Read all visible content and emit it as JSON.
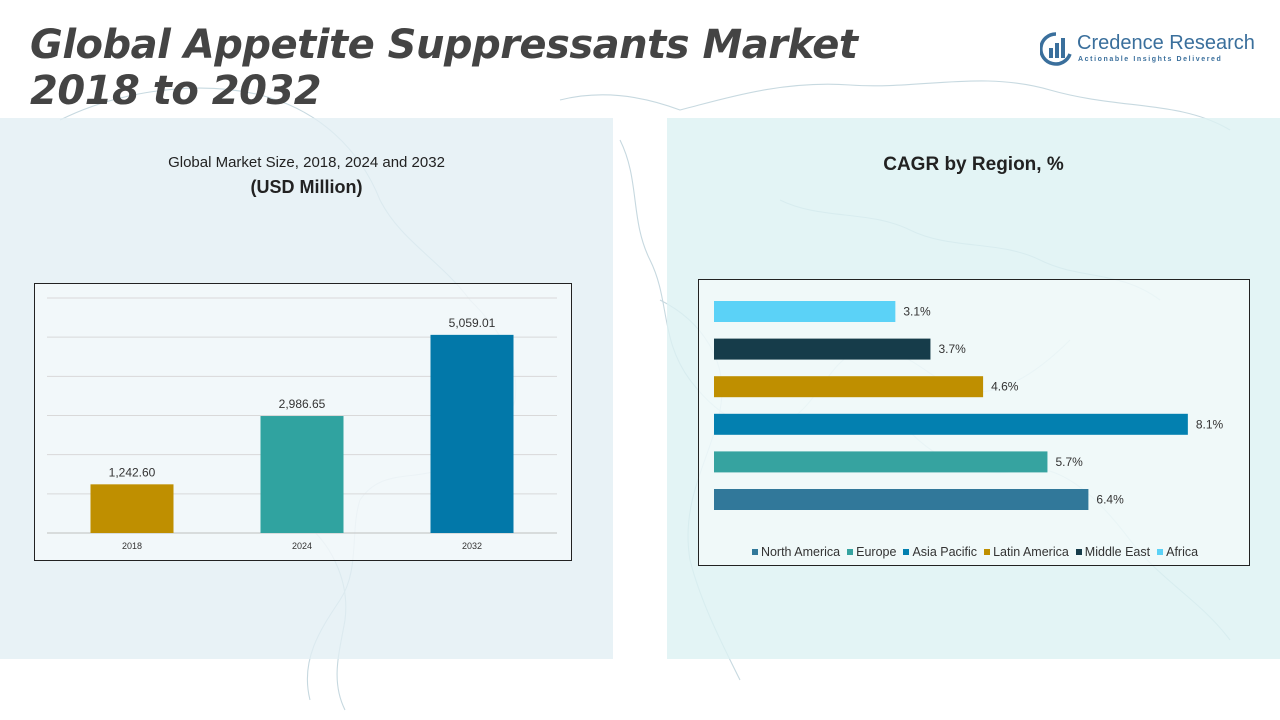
{
  "header": {
    "title_line1": "Global Appetite Suppressants Market",
    "title_line2": "2018 to 2032"
  },
  "brand": {
    "name": "Credence Research",
    "tagline": "Actionable Insights Delivered",
    "color": "#3a6f9c"
  },
  "left_panel": {
    "title": "Global Market Size, 2018, 2024 and 2032",
    "subtitle": "(USD Million)"
  },
  "right_panel": {
    "title": "CAGR by Region, %"
  },
  "chart_data": [
    {
      "type": "bar",
      "title": "Global Market Size, 2018, 2024 and 2032",
      "ylabel": "(USD Million)",
      "categories": [
        "2018",
        "2024",
        "2032"
      ],
      "values": [
        1242.6,
        2986.65,
        5059.01
      ],
      "value_labels": [
        "1,242.60",
        "2,986.65",
        "5,059.01"
      ],
      "colors": [
        "#bf8f00",
        "#30a3a0",
        "#0278a9"
      ],
      "ylim": [
        0,
        6000
      ],
      "grid": true
    },
    {
      "type": "bar",
      "orientation": "horizontal",
      "title": "CAGR by Region, %",
      "categories": [
        "North America",
        "Europe",
        "Asia Pacific",
        "Latin America",
        "Middle East",
        "Africa"
      ],
      "values": [
        6.4,
        5.7,
        8.1,
        4.6,
        3.7,
        3.1
      ],
      "value_labels": [
        "6.4%",
        "5.7%",
        "8.1%",
        "4.6%",
        "3.7%",
        "3.1%"
      ],
      "colors": [
        "#31789a",
        "#36a3a0",
        "#0380b0",
        "#bf8f00",
        "#163c4a",
        "#5bd2f7"
      ],
      "legend_position": "bottom",
      "grid": false
    }
  ]
}
